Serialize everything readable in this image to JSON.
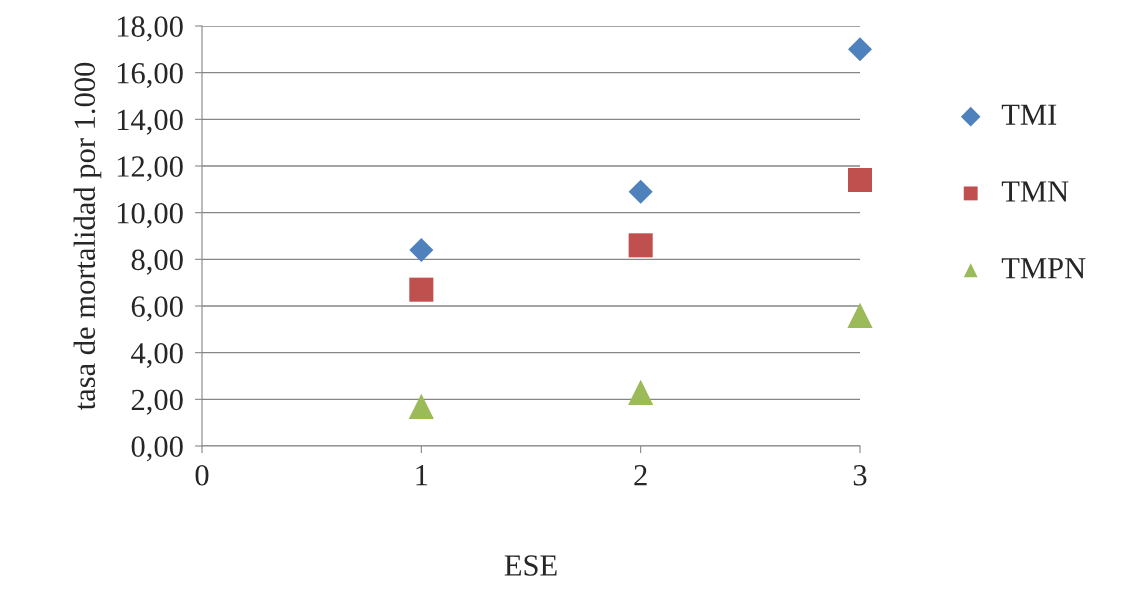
{
  "chart_data": {
    "type": "scatter",
    "xlabel": "ESE",
    "ylabel": "tasa de mortalidad por 1.000",
    "x": [
      1,
      2,
      3
    ],
    "series": [
      {
        "name": "TMI",
        "color": "#4f81bd",
        "marker": "diamond",
        "values": [
          8.4,
          10.9,
          17.0
        ]
      },
      {
        "name": "TMN",
        "color": "#c0504d",
        "marker": "square",
        "values": [
          6.7,
          8.6,
          11.4
        ]
      },
      {
        "name": "TMPN",
        "color": "#9bbb59",
        "marker": "triangle",
        "values": [
          1.7,
          2.3,
          5.6
        ]
      }
    ],
    "xlim": [
      0,
      3
    ],
    "xticks": [
      0,
      1,
      2,
      3
    ],
    "ylim": [
      0,
      18
    ],
    "yticks": [
      {
        "value": 0,
        "label": "0,00"
      },
      {
        "value": 2,
        "label": "2,00"
      },
      {
        "value": 4,
        "label": "4,00"
      },
      {
        "value": 6,
        "label": "6,00"
      },
      {
        "value": 8,
        "label": "8,00"
      },
      {
        "value": 10,
        "label": "10,00"
      },
      {
        "value": 12,
        "label": "12,00"
      },
      {
        "value": 14,
        "label": "14,00"
      },
      {
        "value": 16,
        "label": "16,00"
      },
      {
        "value": 18,
        "label": "18,00"
      }
    ],
    "grid": "y",
    "legend": "right"
  }
}
